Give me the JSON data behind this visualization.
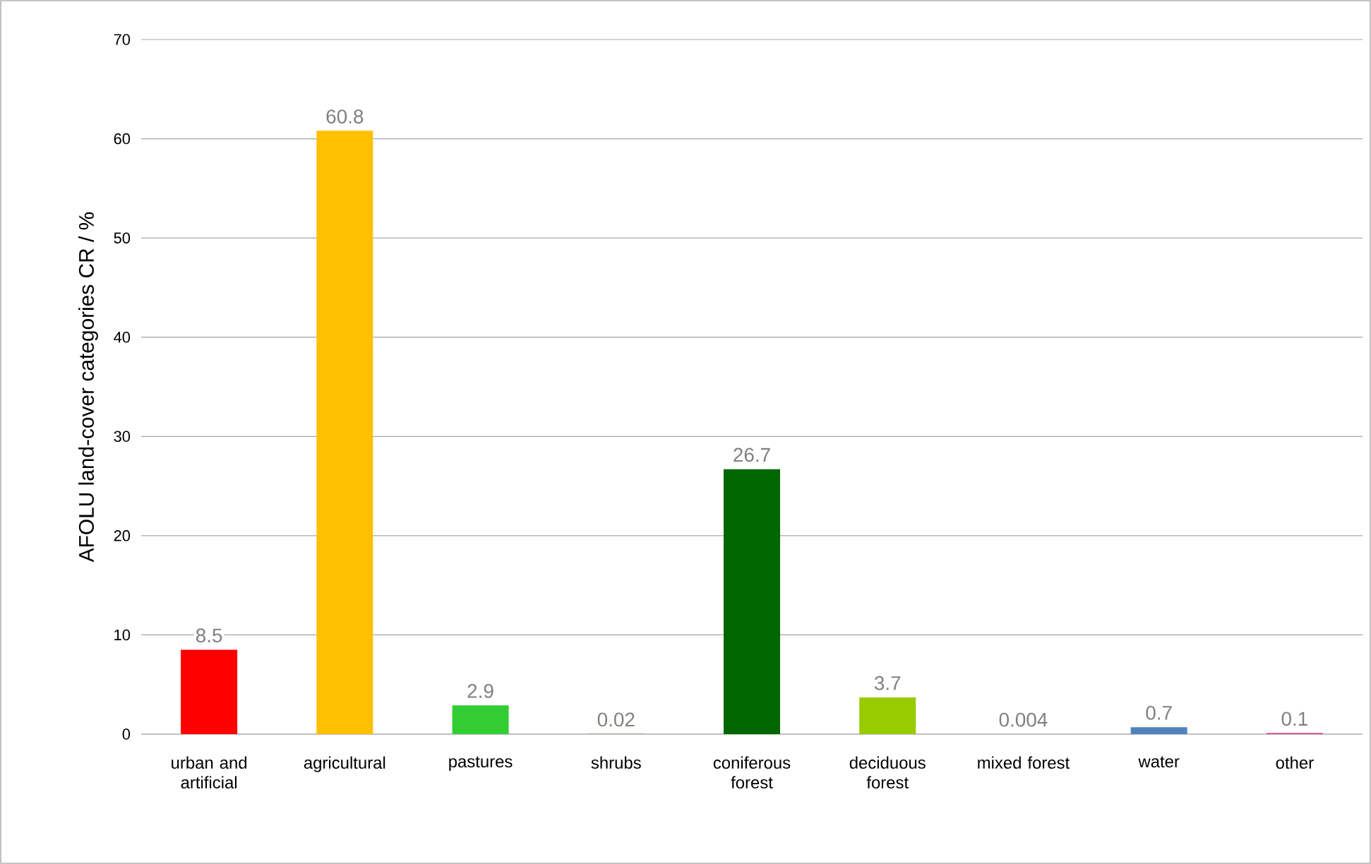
{
  "chart_data": {
    "type": "bar",
    "ylabel": "AFOLU land-cover categories  CR / %",
    "categories": [
      "urban and artificial",
      "agricultural",
      "pastures",
      "shrubs",
      "coniferous forest",
      "deciduous forest",
      "mixed forest",
      "water",
      "other"
    ],
    "values": [
      8.5,
      60.8,
      2.9,
      0.02,
      26.7,
      3.7,
      0.004,
      0.7,
      0.1
    ],
    "colors": [
      "#ff0000",
      "#ffc000",
      "#33cc33",
      "#8c6d3f",
      "#006600",
      "#99cc00",
      "#4f9a4f",
      "#4f81bd",
      "#cc3377"
    ],
    "ylim": [
      0,
      70
    ],
    "yticks": [
      0,
      10,
      20,
      30,
      40,
      50,
      60,
      70
    ],
    "grid": "y",
    "data_labels": true
  }
}
